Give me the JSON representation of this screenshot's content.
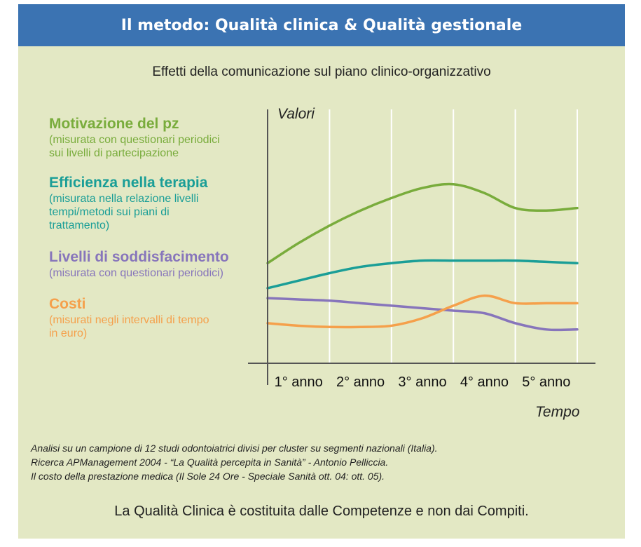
{
  "header": {
    "title": "Il metodo: Qualità clinica & Qualità gestionale"
  },
  "legend": [
    {
      "title": "Motivazione del pz",
      "desc": [
        "(misurata con questionari periodici",
        "sui livelli di partecipazione"
      ],
      "color": "#79ac3c"
    },
    {
      "title": "Efficienza nella terapia",
      "desc": [
        "(misurata nella relazione livelli",
        "tempi/metodi sui piani di",
        "trattamento)"
      ],
      "color": "#1a9e97"
    },
    {
      "title": "Livelli di soddisfacimento",
      "desc": [
        "(misurata con questionari periodici)"
      ],
      "color": "#8775bb"
    },
    {
      "title": "Costi",
      "desc": [
        "(misurati negli intervalli di tempo",
        "in euro)"
      ],
      "color": "#f5a04b"
    }
  ],
  "chart_data": {
    "type": "line",
    "title": "Effetti della comunicazione sul piano clinico-organizzativo",
    "ylabel": "Valori",
    "xlabel": "Tempo",
    "categories": [
      "1° anno",
      "2° anno",
      "3° anno",
      "4° anno",
      "5° anno"
    ],
    "x": [
      0,
      0.5,
      1,
      1.5,
      2,
      2.5,
      3,
      3.5,
      4,
      4.5,
      5
    ],
    "xlim": [
      0,
      5
    ],
    "ylim": [
      0,
      100
    ],
    "grid": "vertical",
    "series": [
      {
        "name": "Motivazione del pz",
        "color": "#79ac3c",
        "values": [
          40,
          48,
          55,
          61,
          66,
          70,
          71.5,
          68,
          62,
          61,
          62
        ]
      },
      {
        "name": "Efficienza nella terapia",
        "color": "#1a9e97",
        "values": [
          30,
          33,
          36,
          38.5,
          40,
          41,
          41,
          41,
          41,
          40.5,
          40
        ]
      },
      {
        "name": "Livelli di soddisfacimento",
        "color": "#8775bb",
        "values": [
          26,
          25.5,
          25,
          24,
          23,
          22,
          21,
          20,
          16,
          13.5,
          13.5
        ]
      },
      {
        "name": "Costi",
        "color": "#f5a04b",
        "values": [
          16,
          15,
          14.5,
          14.5,
          15,
          18,
          23,
          27,
          24,
          24,
          24
        ]
      }
    ]
  },
  "notes": [
    "Analisi su un campione di 12 studi odontoiatrici divisi per cluster su segmenti nazionali (Italia).",
    "Ricerca APManagement 2004 - “La Qualità percepita in Sanità” - Antonio Pelliccia.",
    "Il costo della prestazione medica (Il Sole 24 Ore - Speciale Sanità ott. 04: ott. 05)."
  ],
  "footer": "La Qualità Clinica è costituita dalle Competenze e non dai Compiti."
}
